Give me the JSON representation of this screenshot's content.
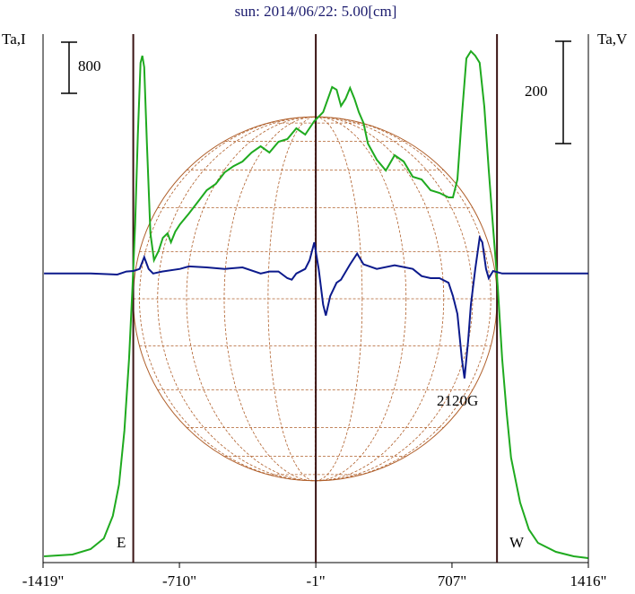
{
  "chart_data": {
    "type": "line",
    "title": "sun: 2014/06/22: 5.00[cm]",
    "y_label": "Ta,I",
    "y2_label": "Ta,V",
    "xlim": [
      -1419,
      1416
    ],
    "xticks": [
      {
        "value": -1419,
        "label": "-1419\""
      },
      {
        "value": -710,
        "label": "-710\""
      },
      {
        "value": -1,
        "label": "-1\""
      },
      {
        "value": 707,
        "label": "707\""
      },
      {
        "value": 1416,
        "label": "1416\""
      }
    ],
    "ylim": [
      0,
      8270
    ],
    "y2lim": [
      -565,
      468
    ],
    "scale_bars": [
      {
        "value": 800,
        "axis": "y"
      },
      {
        "value": 200,
        "axis": "y2"
      }
    ],
    "vlines": [
      -950,
      -1,
      941
    ],
    "annotations": [
      "E",
      "W",
      "2120G"
    ],
    "series": [
      {
        "name": "I",
        "color": "#1faa1f",
        "axis": "y",
        "x": [
          -1414,
          -1266,
          -1172,
          -1103,
          -1056,
          -1024,
          -996,
          -972,
          -954,
          -940,
          -926,
          -912,
          -903,
          -893,
          -879,
          -861,
          -842,
          -819,
          -796,
          -772,
          -754,
          -731,
          -707,
          -661,
          -614,
          -568,
          -521,
          -475,
          -428,
          -382,
          -335,
          -288,
          -242,
          -195,
          -149,
          -102,
          -56,
          -9,
          37,
          84,
          107,
          130,
          154,
          177,
          200,
          223,
          247,
          270,
          316,
          363,
          409,
          456,
          503,
          549,
          596,
          642,
          689,
          712,
          735,
          758,
          782,
          805,
          828,
          851,
          875,
          898,
          921,
          945,
          968,
          991,
          1014,
          1061,
          1107,
          1154,
          1247,
          1340,
          1415
        ],
        "values": [
          98,
          126,
          211,
          379,
          730,
          1221,
          2064,
          3187,
          4310,
          5293,
          6697,
          7820,
          7932,
          7750,
          6557,
          5153,
          4732,
          4872,
          5083,
          5153,
          5013,
          5181,
          5293,
          5462,
          5644,
          5827,
          5925,
          6107,
          6205,
          6276,
          6416,
          6515,
          6416,
          6585,
          6627,
          6796,
          6697,
          6908,
          7048,
          7441,
          7399,
          7146,
          7258,
          7427,
          7258,
          7048,
          6880,
          6557,
          6304,
          6136,
          6374,
          6276,
          6037,
          5995,
          5827,
          5785,
          5714,
          5714,
          5995,
          6978,
          7890,
          8002,
          7932,
          7820,
          7132,
          6149,
          5237,
          4310,
          3187,
          2345,
          1642,
          941,
          520,
          309,
          168,
          98,
          70
        ]
      },
      {
        "name": "V",
        "color": "#0c1a8c",
        "axis": "y2",
        "x": [
          -1414,
          -1172,
          -1033,
          -986,
          -949,
          -917,
          -893,
          -870,
          -847,
          -800,
          -707,
          -661,
          -568,
          -475,
          -382,
          -288,
          -242,
          -195,
          -149,
          -126,
          -102,
          -56,
          -33,
          -9,
          14,
          37,
          51,
          74,
          107,
          130,
          177,
          214,
          247,
          316,
          409,
          503,
          549,
          596,
          642,
          689,
          712,
          735,
          758,
          772,
          791,
          805,
          828,
          851,
          865,
          884,
          898,
          921,
          968,
          1154,
          1415
        ],
        "values": [
          0,
          0,
          -2,
          4,
          5,
          9,
          32,
          9,
          0,
          4,
          9,
          14,
          12,
          9,
          12,
          0,
          4,
          4,
          -9,
          -12,
          0,
          9,
          26,
          61,
          9,
          -61,
          -82,
          -44,
          -18,
          -12,
          18,
          39,
          18,
          9,
          16,
          9,
          -5,
          -9,
          -9,
          -18,
          -44,
          -79,
          -166,
          -205,
          -131,
          -61,
          9,
          70,
          61,
          9,
          -9,
          5,
          0,
          0,
          0
        ]
      }
    ]
  }
}
